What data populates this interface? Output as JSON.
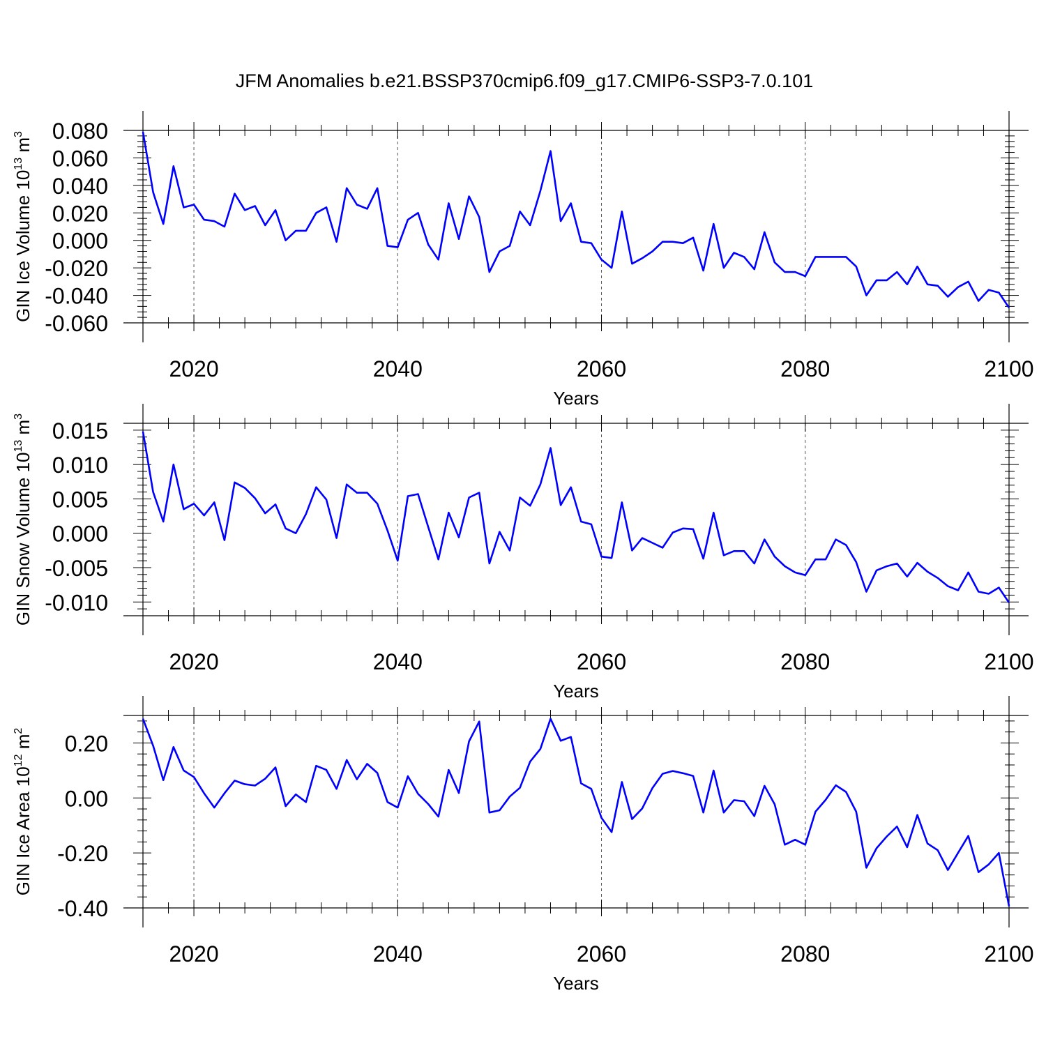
{
  "title": "JFM Anomalies b.e21.BSSP370cmip6.f09_g17.CMIP6-SSP3-7.0.101",
  "colors": {
    "line": "#0000ff",
    "axis": "#000000",
    "grid": "#555555"
  },
  "chart_data": [
    {
      "type": "line",
      "name": "ice-volume",
      "ylabel": {
        "text": "GIN Ice Volume 10",
        "exponent": "13",
        "unit": " m",
        "unit_exponent": "3"
      },
      "xlabel": "Years",
      "xlim": [
        2015,
        2100
      ],
      "ylim": [
        -0.06,
        0.08
      ],
      "xticks": [
        2020,
        2040,
        2060,
        2080,
        2100
      ],
      "xtick_labels": [
        "2020",
        "2040",
        "2060",
        "2080",
        "2100"
      ],
      "yticks": [
        0.08,
        0.06,
        0.04,
        0.02,
        0.0,
        -0.02,
        -0.04,
        -0.06
      ],
      "ytick_labels": [
        "0.080",
        "0.060",
        "0.040",
        "0.020",
        "0.000",
        "-0.020",
        "-0.040",
        "-0.060"
      ],
      "grid_x": [
        2020,
        2040,
        2060,
        2080
      ],
      "x_start": 2015,
      "values": [
        0.079,
        0.035,
        0.012,
        0.054,
        0.024,
        0.026,
        0.015,
        0.014,
        0.01,
        0.034,
        0.022,
        0.025,
        0.011,
        0.022,
        -0.0,
        0.007,
        0.007,
        0.02,
        0.024,
        -0.001,
        0.038,
        0.026,
        0.023,
        0.038,
        -0.004,
        -0.005,
        0.015,
        0.02,
        -0.003,
        -0.014,
        0.027,
        0.001,
        0.032,
        0.017,
        -0.023,
        -0.008,
        -0.004,
        0.021,
        0.011,
        0.036,
        0.065,
        0.014,
        0.027,
        -0.001,
        -0.002,
        -0.014,
        -0.02,
        0.021,
        -0.017,
        -0.013,
        -0.008,
        -0.001,
        -0.001,
        -0.002,
        0.002,
        -0.022,
        0.012,
        -0.02,
        -0.009,
        -0.012,
        -0.021,
        0.006,
        -0.016,
        -0.023,
        -0.023,
        -0.026,
        -0.012,
        -0.012,
        -0.012,
        -0.012,
        -0.019,
        -0.04,
        -0.029,
        -0.029,
        -0.023,
        -0.032,
        -0.019,
        -0.032,
        -0.033,
        -0.041,
        -0.034,
        -0.03,
        -0.044,
        -0.036,
        -0.038,
        -0.049
      ]
    },
    {
      "type": "line",
      "name": "snow-volume",
      "ylabel": {
        "text": "GIN Snow Volume 10",
        "exponent": "13",
        "unit": " m",
        "unit_exponent": "3"
      },
      "xlabel": "Years",
      "xlim": [
        2015,
        2100
      ],
      "ylim": [
        -0.012,
        0.016
      ],
      "xticks": [
        2020,
        2040,
        2060,
        2080,
        2100
      ],
      "xtick_labels": [
        "2020",
        "2040",
        "2060",
        "2080",
        "2100"
      ],
      "yticks": [
        0.015,
        0.01,
        0.005,
        0.0,
        -0.005,
        -0.01
      ],
      "ytick_labels": [
        "0.015",
        "0.010",
        "0.005",
        "0.000",
        "-0.005",
        "-0.010"
      ],
      "grid_x": [
        2020,
        2040,
        2060,
        2080
      ],
      "x_start": 2015,
      "values": [
        0.0148,
        0.006,
        0.0017,
        0.01,
        0.0035,
        0.0043,
        0.0026,
        0.0045,
        -0.001,
        0.0074,
        0.0066,
        0.0051,
        0.0029,
        0.0042,
        0.0007,
        0.0,
        0.0028,
        0.0067,
        0.0049,
        -0.0007,
        0.0071,
        0.0059,
        0.0059,
        0.0043,
        0.0004,
        -0.004,
        0.0054,
        0.0057,
        0.0009,
        -0.0038,
        0.003,
        -0.0006,
        0.0052,
        0.0059,
        -0.0044,
        0.0002,
        -0.0025,
        0.0052,
        0.004,
        0.0071,
        0.0124,
        0.0041,
        0.0067,
        0.0017,
        0.0013,
        -0.0034,
        -0.0036,
        0.0045,
        -0.0025,
        -0.0007,
        -0.0014,
        -0.0021,
        0.0001,
        0.0007,
        0.0006,
        -0.0037,
        0.003,
        -0.0032,
        -0.0026,
        -0.0026,
        -0.0044,
        -0.0009,
        -0.0034,
        -0.0048,
        -0.0057,
        -0.0061,
        -0.0038,
        -0.0038,
        -0.0009,
        -0.0017,
        -0.0042,
        -0.0085,
        -0.0054,
        -0.0048,
        -0.0044,
        -0.0063,
        -0.0043,
        -0.0056,
        -0.0065,
        -0.0077,
        -0.0083,
        -0.0057,
        -0.0085,
        -0.0088,
        -0.0079,
        -0.0101
      ]
    },
    {
      "type": "line",
      "name": "ice-area",
      "ylabel": {
        "text": "GIN Ice Area 10",
        "exponent": "12",
        "unit": " m",
        "unit_exponent": "2"
      },
      "xlabel": "Years",
      "xlim": [
        2015,
        2100
      ],
      "ylim": [
        -0.4,
        0.3
      ],
      "xticks": [
        2020,
        2040,
        2060,
        2080,
        2100
      ],
      "xtick_labels": [
        "2020",
        "2040",
        "2060",
        "2080",
        "2100"
      ],
      "yticks": [
        0.2,
        0.0,
        -0.2,
        -0.4
      ],
      "ytick_labels": [
        "0.20",
        "0.00",
        "-0.20",
        "-0.40"
      ],
      "grid_x": [
        2020,
        2040,
        2060,
        2080
      ],
      "x_start": 2015,
      "values": [
        0.288,
        0.19,
        0.065,
        0.185,
        0.1,
        0.076,
        0.017,
        -0.035,
        0.017,
        0.063,
        0.05,
        0.045,
        0.07,
        0.111,
        -0.03,
        0.013,
        -0.015,
        0.117,
        0.102,
        0.033,
        0.138,
        0.068,
        0.124,
        0.091,
        -0.015,
        -0.035,
        0.079,
        0.015,
        -0.022,
        -0.068,
        0.102,
        0.018,
        0.206,
        0.278,
        -0.053,
        -0.045,
        0.005,
        0.037,
        0.132,
        0.178,
        0.288,
        0.208,
        0.222,
        0.053,
        0.033,
        -0.072,
        -0.124,
        0.058,
        -0.077,
        -0.038,
        0.036,
        0.088,
        0.098,
        0.09,
        0.08,
        -0.053,
        0.1,
        -0.053,
        -0.008,
        -0.012,
        -0.066,
        0.044,
        -0.023,
        -0.17,
        -0.152,
        -0.17,
        -0.05,
        -0.007,
        0.046,
        0.022,
        -0.05,
        -0.254,
        -0.183,
        -0.14,
        -0.104,
        -0.179,
        -0.062,
        -0.166,
        -0.19,
        -0.262,
        -0.2,
        -0.138,
        -0.27,
        -0.242,
        -0.2,
        -0.394
      ]
    }
  ]
}
